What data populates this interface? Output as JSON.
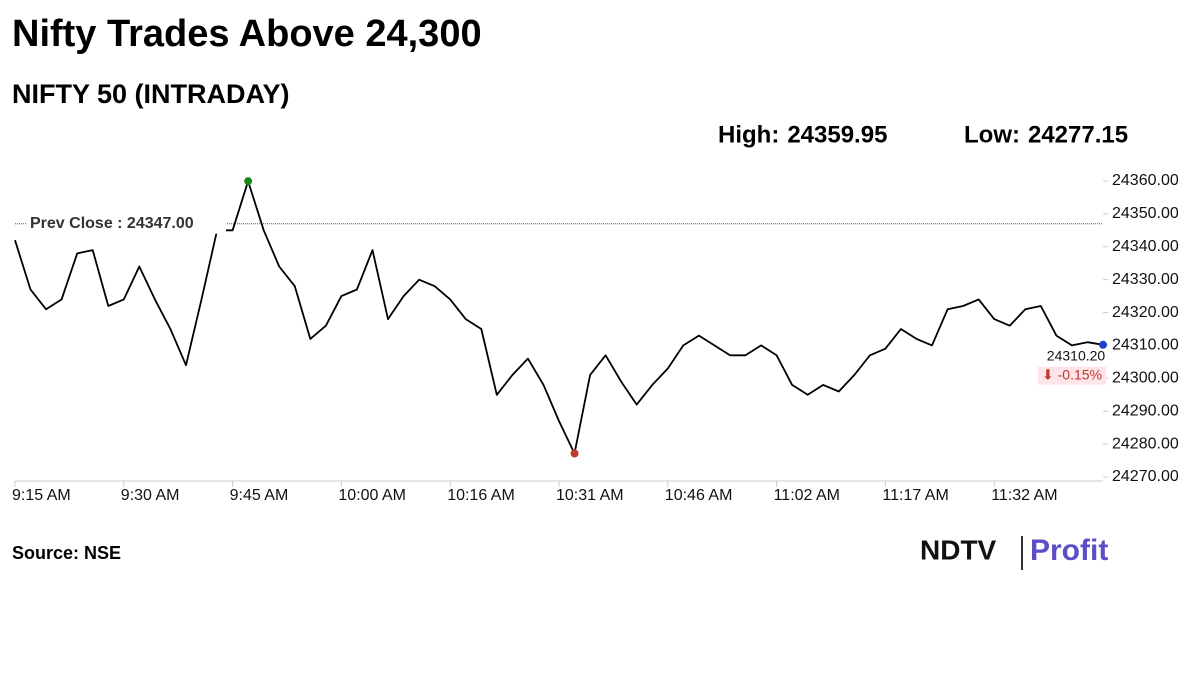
{
  "chart_data": {
    "type": "line",
    "title": "Nifty Trades Above 24,300",
    "subtitle": "NIFTY 50 (INTRADAY)",
    "stats": [
      {
        "name": "High:",
        "value": 24359.95
      },
      {
        "name": "Low:",
        "value": 24277.15
      }
    ],
    "categories": [
      "9:15 AM",
      null,
      null,
      null,
      null,
      null,
      null,
      "9:30 AM",
      null,
      null,
      null,
      null,
      null,
      null,
      "9:45 AM",
      null,
      null,
      null,
      null,
      null,
      null,
      "10:00 AM",
      null,
      null,
      null,
      null,
      null,
      null,
      "10:16 AM",
      null,
      null,
      null,
      null,
      null,
      null,
      "10:31 AM",
      null,
      null,
      null,
      null,
      null,
      null,
      "10:46 AM",
      null,
      null,
      null,
      null,
      null,
      null,
      "11:02 AM",
      null,
      null,
      null,
      null,
      null,
      null,
      "11:17 AM",
      null,
      null,
      null,
      null,
      null,
      null,
      "11:32 AM",
      null,
      null,
      null,
      null,
      null,
      null,
      null
    ],
    "values": [
      24342,
      24327,
      24321,
      24324,
      24338,
      24339,
      24322,
      24324,
      24334,
      24324,
      24315,
      24304,
      24324,
      24345,
      24345,
      24359.95,
      24345,
      24334,
      24328,
      24312,
      24316,
      24325,
      24327,
      24339,
      24318,
      24325,
      24330,
      24328,
      24324,
      24318,
      24315,
      24295,
      24301,
      24306,
      24298,
      24287,
      24277.15,
      24301,
      24307,
      24299,
      24292,
      24298,
      24303,
      24310,
      24313,
      24310,
      24307,
      24307,
      24310,
      24307,
      24298,
      24295,
      24298,
      24296,
      24301,
      24307,
      24309,
      24315,
      24312,
      24310,
      24321,
      24322,
      24324,
      24318,
      24316,
      24321,
      24322,
      24313,
      24310,
      24311,
      24310.2
    ],
    "color": "#000000",
    "last_label": "24310.20",
    "change": {
      "value": -0.15,
      "label": "⬇ -0.15%"
    },
    "prev_close": {
      "value": 24347,
      "label": "Prev Close : 24347.00"
    },
    "ylim": [
      24270,
      24360
    ],
    "yticks": [
      {
        "value": 24270,
        "label": "24270.00"
      },
      {
        "value": 24280,
        "label": "24280.00"
      },
      {
        "value": 24290,
        "label": "24290.00"
      },
      {
        "value": 24300,
        "label": "24300.00"
      },
      {
        "value": 24310,
        "label": "24310.00"
      },
      {
        "value": 24320,
        "label": "24320.00"
      },
      {
        "value": 24330,
        "label": "24330.00"
      },
      {
        "value": 24340,
        "label": "24340.00"
      },
      {
        "value": 24350,
        "label": "24350.00"
      },
      {
        "value": 24360,
        "label": "24360.00"
      }
    ],
    "source": "Source: NSE",
    "logo": [
      "NDTV",
      "Profit"
    ]
  }
}
